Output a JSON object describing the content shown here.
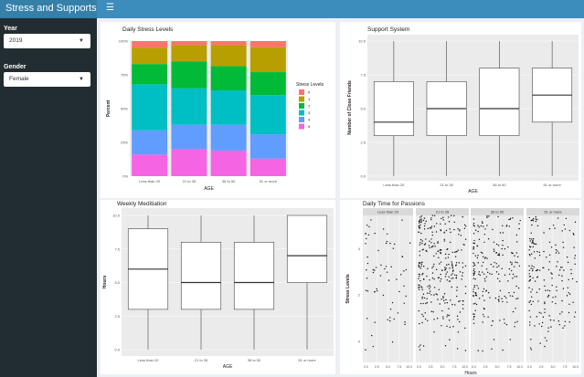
{
  "app": {
    "title": "Stress and Supports",
    "menu_icon": "hamburger-icon"
  },
  "sidebar": {
    "year": {
      "label": "Year",
      "value": "2019"
    },
    "gender": {
      "label": "Gender",
      "value": "Female"
    }
  },
  "colors": {
    "header": "#3c8dbc",
    "sidebar": "#222d32",
    "levels": [
      "#f8766d",
      "#b79f00",
      "#00ba38",
      "#00bfc4",
      "#619cff",
      "#f564e3"
    ]
  },
  "chart_data": [
    {
      "id": "stress",
      "type": "bar",
      "stacked": true,
      "title": "Daily Stress Levels",
      "xlabel": "AGE",
      "ylabel": "Percent",
      "categories": [
        "Less than 20",
        "21 to 35",
        "36 to 50",
        "51 or more"
      ],
      "yticks": [
        "0%",
        "25%",
        "50%",
        "75%",
        "100%"
      ],
      "legend": {
        "title": "Stress Levels",
        "position": "right",
        "entries": [
          "0",
          "1",
          "2",
          "3",
          "4",
          "5"
        ]
      },
      "series": [
        {
          "name": "5",
          "values": [
            16,
            20,
            19,
            13
          ]
        },
        {
          "name": "4",
          "values": [
            18,
            18,
            19,
            18
          ]
        },
        {
          "name": "3",
          "values": [
            34,
            27,
            25.5,
            29
          ]
        },
        {
          "name": "2",
          "values": [
            15,
            20,
            18,
            17
          ]
        },
        {
          "name": "1",
          "values": [
            12,
            12,
            15.5,
            18.5
          ]
        },
        {
          "name": "0",
          "values": [
            5,
            3,
            3,
            4.5
          ]
        }
      ]
    },
    {
      "id": "support",
      "type": "boxplot",
      "title": "Support System",
      "xlabel": "AGE",
      "ylabel": "Number of Close Friends",
      "ylim": [
        0,
        10
      ],
      "yticks": [
        "0.0",
        "2.5",
        "5.0",
        "7.5",
        "10.0"
      ],
      "categories": [
        "Less than 20",
        "21 to 35",
        "36 to 50",
        "51 or more"
      ],
      "boxes": [
        {
          "min": 0,
          "q1": 3,
          "median": 4,
          "q3": 7,
          "max": 10
        },
        {
          "min": 0,
          "q1": 3,
          "median": 5,
          "q3": 7,
          "max": 10
        },
        {
          "min": 0,
          "q1": 3,
          "median": 5,
          "q3": 8,
          "max": 10
        },
        {
          "min": 0,
          "q1": 4,
          "median": 6,
          "q3": 8,
          "max": 10
        }
      ]
    },
    {
      "id": "meditation",
      "type": "boxplot",
      "title": "Weekly Meditiation",
      "xlabel": "AGE",
      "ylabel": "Hours",
      "ylim": [
        0,
        10
      ],
      "yticks": [
        "0.0",
        "2.5",
        "5.0",
        "7.5",
        "10.0"
      ],
      "categories": [
        "Less than 20",
        "21 to 35",
        "36 to 50",
        "51 or more"
      ],
      "boxes": [
        {
          "min": 0,
          "q1": 3,
          "median": 6,
          "q3": 9,
          "max": 10
        },
        {
          "min": 0,
          "q1": 3,
          "median": 5,
          "q3": 8,
          "max": 10
        },
        {
          "min": 0,
          "q1": 3,
          "median": 5,
          "q3": 8,
          "max": 10
        },
        {
          "min": 0,
          "q1": 5,
          "median": 7,
          "q3": 10,
          "max": 10
        }
      ]
    },
    {
      "id": "passions",
      "type": "scatter",
      "title": "Daily Time for Passions",
      "xlabel": "Hours",
      "ylabel": "Stress Levels",
      "xlim": [
        0,
        10
      ],
      "ylim": [
        0,
        5
      ],
      "xticks": [
        "0.0",
        "2.5",
        "5.0",
        "7.5",
        "10.0"
      ],
      "yticks": [
        "0",
        "2",
        "4"
      ],
      "facets": [
        "Less than 20",
        "21 to 35",
        "36 to 50",
        "51 or more"
      ],
      "points_per_level": [
        [
          4,
          10,
          12,
          18,
          12,
          10
        ],
        [
          10,
          30,
          55,
          80,
          55,
          65
        ],
        [
          6,
          25,
          45,
          55,
          45,
          35
        ],
        [
          8,
          30,
          35,
          45,
          40,
          25
        ]
      ]
    }
  ]
}
